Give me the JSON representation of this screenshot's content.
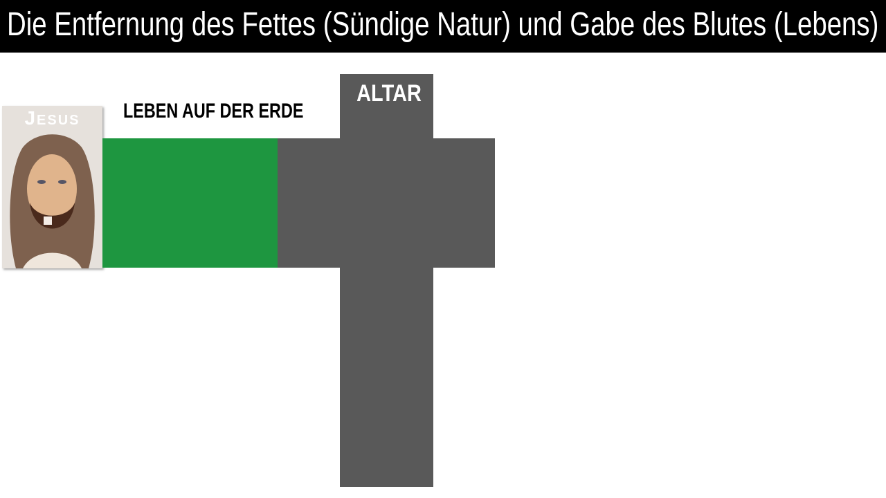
{
  "header": {
    "title": "Die Entfernung des Fettes (Sündige Natur) und Gabe des Blutes (Lebens)"
  },
  "card": {
    "label": "Jesus"
  },
  "diagram": {
    "life_label": "LEBEN AUF DER ERDE",
    "altar_label": "ALTAR",
    "colors": {
      "life_bar": "#1e9640",
      "altar": "#595959",
      "title_bg": "#000000"
    }
  }
}
